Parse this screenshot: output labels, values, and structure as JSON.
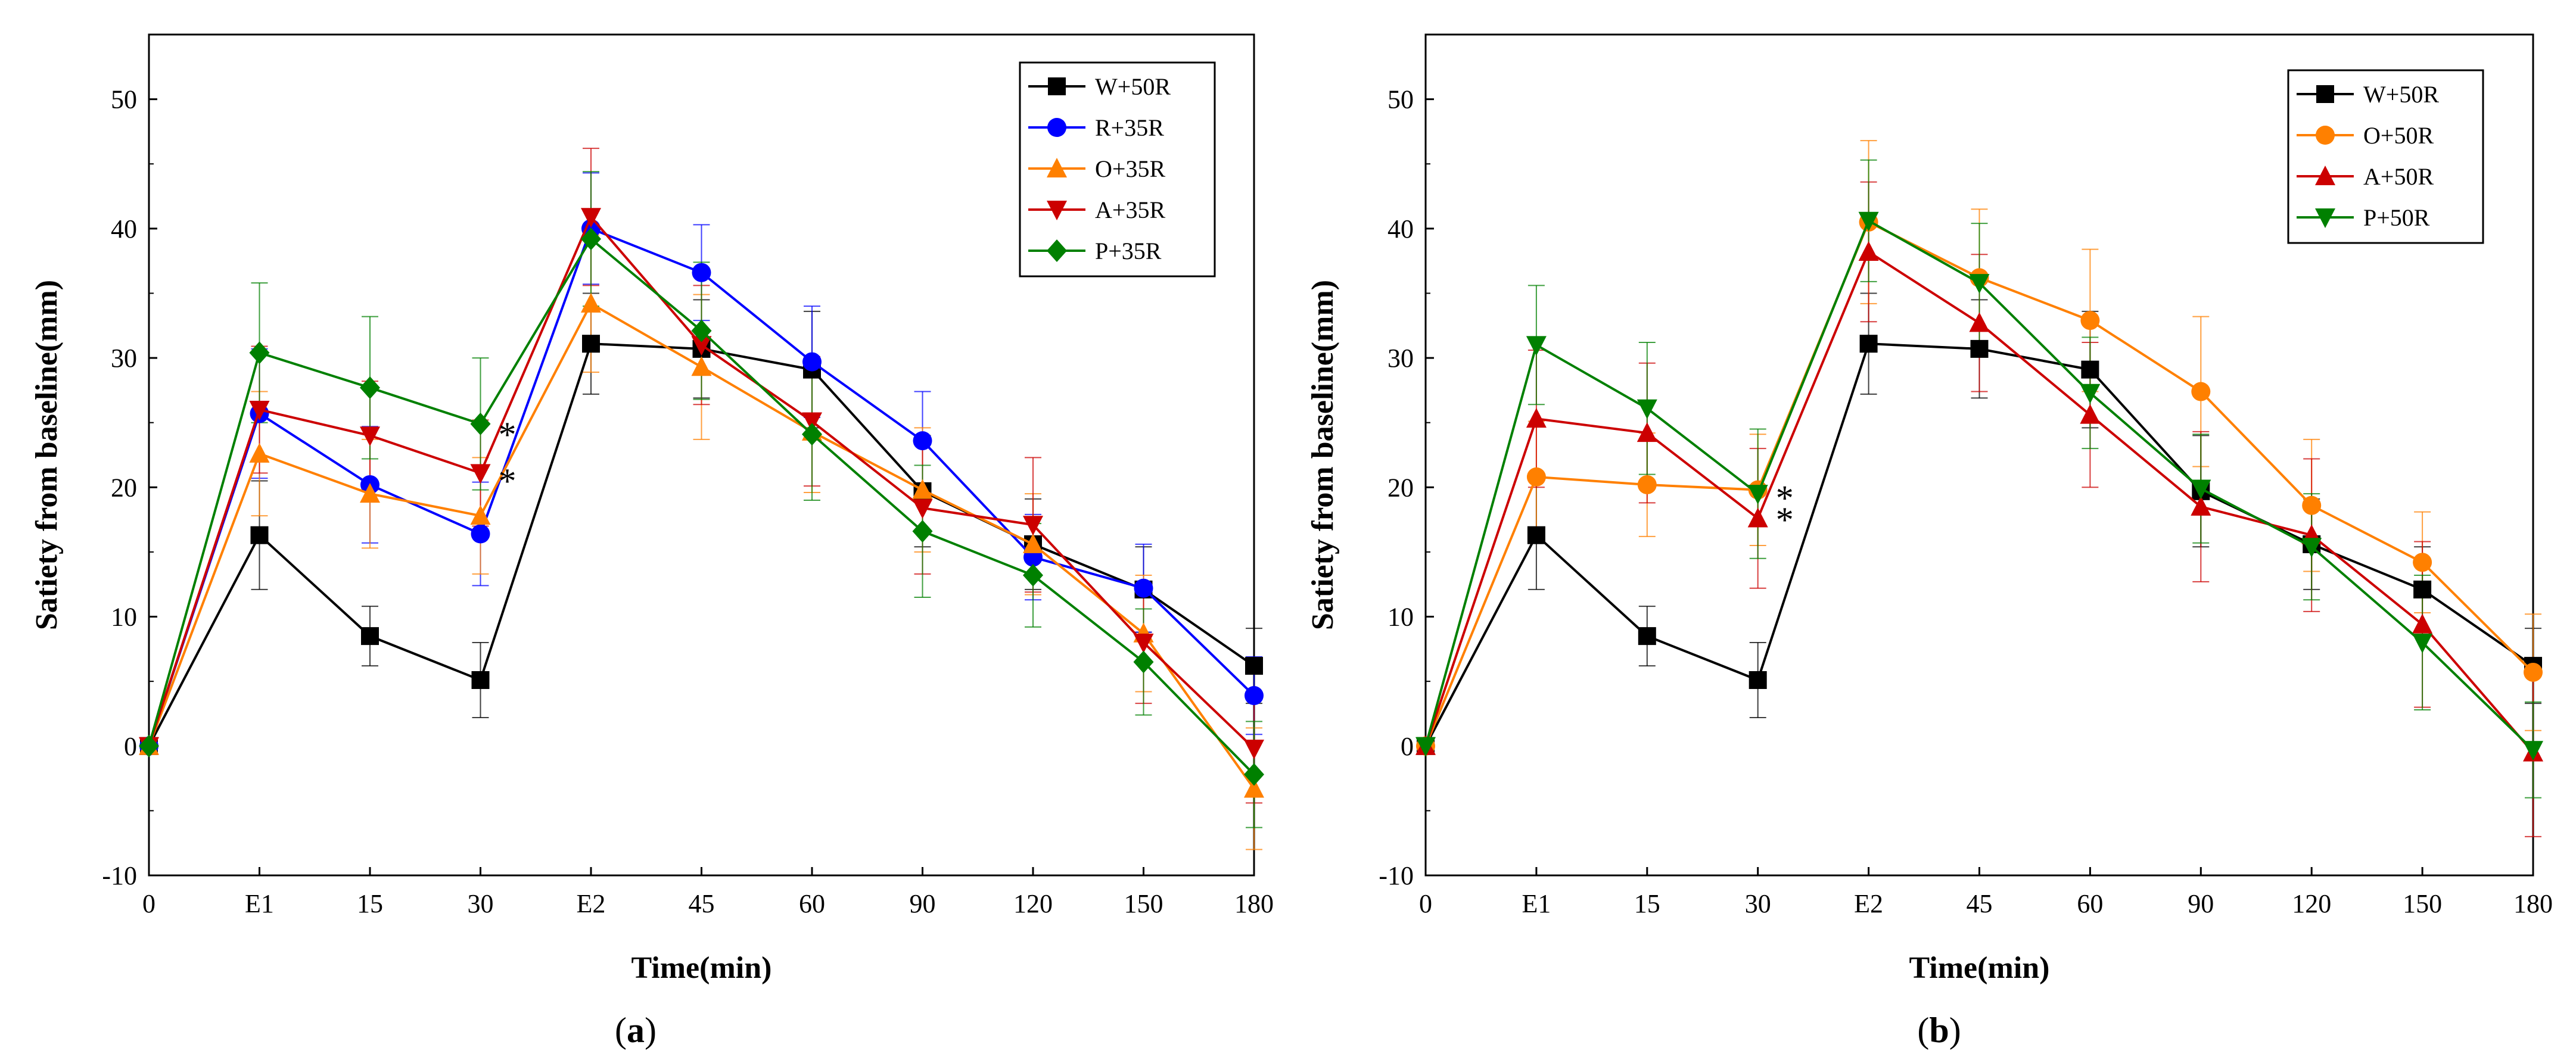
{
  "chart_data": [
    {
      "type": "line",
      "panel_label": "(a)",
      "panel_letter": "a",
      "xlabel": "Time(min)",
      "ylabel": "Satiety from baseline(mm)",
      "categories": [
        "0",
        "E1",
        "15",
        "30",
        "E2",
        "45",
        "60",
        "90",
        "120",
        "150",
        "180"
      ],
      "ylim": [
        -10,
        55
      ],
      "yticks": [
        -10,
        0,
        10,
        20,
        30,
        40,
        50
      ],
      "legend_position": "top-right",
      "series": [
        {
          "name": "W+50R",
          "color": "#000000",
          "marker": "square",
          "values": [
            0,
            16.3,
            8.5,
            5.1,
            31.1,
            30.7,
            29.1,
            19.7,
            15.6,
            12.1,
            6.2
          ],
          "errors": [
            0,
            4.2,
            2.3,
            2.9,
            3.9,
            3.8,
            4.5,
            4.3,
            3.5,
            3.3,
            2.9
          ]
        },
        {
          "name": "R+35R",
          "color": "#0000ff",
          "marker": "circle",
          "values": [
            0,
            25.7,
            20.2,
            16.4,
            40.0,
            36.6,
            29.7,
            23.6,
            14.6,
            12.2,
            3.9
          ],
          "errors": [
            0,
            5.0,
            4.5,
            4.0,
            4.3,
            3.7,
            4.3,
            3.8,
            3.3,
            3.4,
            3.0
          ]
        },
        {
          "name": "O+35R",
          "color": "#ff8000",
          "marker": "triangle-up",
          "values": [
            0,
            22.6,
            19.5,
            17.8,
            34.2,
            29.3,
            24.3,
            19.8,
            15.6,
            8.7,
            -3.3
          ],
          "errors": [
            0,
            4.8,
            4.2,
            4.5,
            5.3,
            5.6,
            4.7,
            4.8,
            3.9,
            4.5,
            4.7
          ]
        },
        {
          "name": "A+35R",
          "color": "#cc0000",
          "marker": "triangle-down",
          "values": [
            0,
            26.0,
            24.0,
            21.1,
            40.9,
            31.0,
            25.1,
            18.4,
            17.1,
            8.0,
            -0.2
          ],
          "errors": [
            0,
            4.9,
            4.2,
            4.1,
            5.3,
            4.6,
            5.0,
            5.1,
            5.2,
            4.7,
            4.2
          ]
        },
        {
          "name": "P+35R",
          "color": "#008000",
          "marker": "diamond",
          "values": [
            0,
            30.4,
            27.7,
            24.9,
            39.2,
            32.1,
            24.1,
            16.6,
            13.2,
            6.5,
            -2.2
          ],
          "errors": [
            0,
            5.4,
            5.5,
            5.1,
            5.2,
            5.3,
            5.1,
            5.1,
            4.0,
            4.1,
            4.1
          ]
        }
      ],
      "annotations": [
        {
          "text": "*",
          "category": "30",
          "y": 24.9
        },
        {
          "text": "*",
          "category": "30",
          "y": 21.3
        }
      ]
    },
    {
      "type": "line",
      "panel_label": "(b)",
      "panel_letter": "b",
      "xlabel": "Time(min)",
      "ylabel": "Satiety from baseline(mm)",
      "categories": [
        "0",
        "E1",
        "15",
        "30",
        "E2",
        "45",
        "60",
        "90",
        "120",
        "150",
        "180"
      ],
      "ylim": [
        -10,
        55
      ],
      "yticks": [
        -10,
        0,
        10,
        20,
        30,
        40,
        50
      ],
      "legend_position": "top-right",
      "series": [
        {
          "name": "W+50R",
          "color": "#000000",
          "marker": "square",
          "values": [
            0,
            16.3,
            8.5,
            5.1,
            31.1,
            30.7,
            29.1,
            19.7,
            15.6,
            12.1,
            6.2
          ],
          "errors": [
            0,
            4.2,
            2.3,
            2.9,
            3.9,
            3.8,
            4.5,
            4.3,
            3.5,
            3.3,
            2.9
          ]
        },
        {
          "name": "O+50R",
          "color": "#ff8000",
          "marker": "circle",
          "values": [
            0,
            20.8,
            20.2,
            19.8,
            40.5,
            36.2,
            32.9,
            27.4,
            18.6,
            14.2,
            5.7
          ],
          "errors": [
            0,
            4.3,
            4.0,
            4.3,
            6.3,
            5.3,
            5.5,
            5.8,
            5.1,
            3.9,
            4.5
          ]
        },
        {
          "name": "A+50R",
          "color": "#cc0000",
          "marker": "triangle-up",
          "values": [
            0,
            25.3,
            24.2,
            17.6,
            38.2,
            32.7,
            25.6,
            18.5,
            16.3,
            9.4,
            -0.5
          ],
          "errors": [
            0,
            5.3,
            5.4,
            5.4,
            5.4,
            5.3,
            5.6,
            5.8,
            5.9,
            6.4,
            6.5
          ]
        },
        {
          "name": "P+50R",
          "color": "#008000",
          "marker": "triangle-down",
          "values": [
            0,
            31.0,
            26.1,
            19.5,
            40.6,
            35.8,
            27.3,
            19.9,
            15.4,
            8.0,
            -0.3
          ],
          "errors": [
            0,
            4.6,
            5.1,
            5.0,
            4.7,
            4.6,
            4.3,
            4.2,
            4.1,
            5.2,
            3.7
          ]
        }
      ],
      "annotations": [
        {
          "text": "*",
          "category": "30",
          "y": 20.0
        },
        {
          "text": "*",
          "category": "30",
          "y": 18.3
        }
      ]
    }
  ]
}
